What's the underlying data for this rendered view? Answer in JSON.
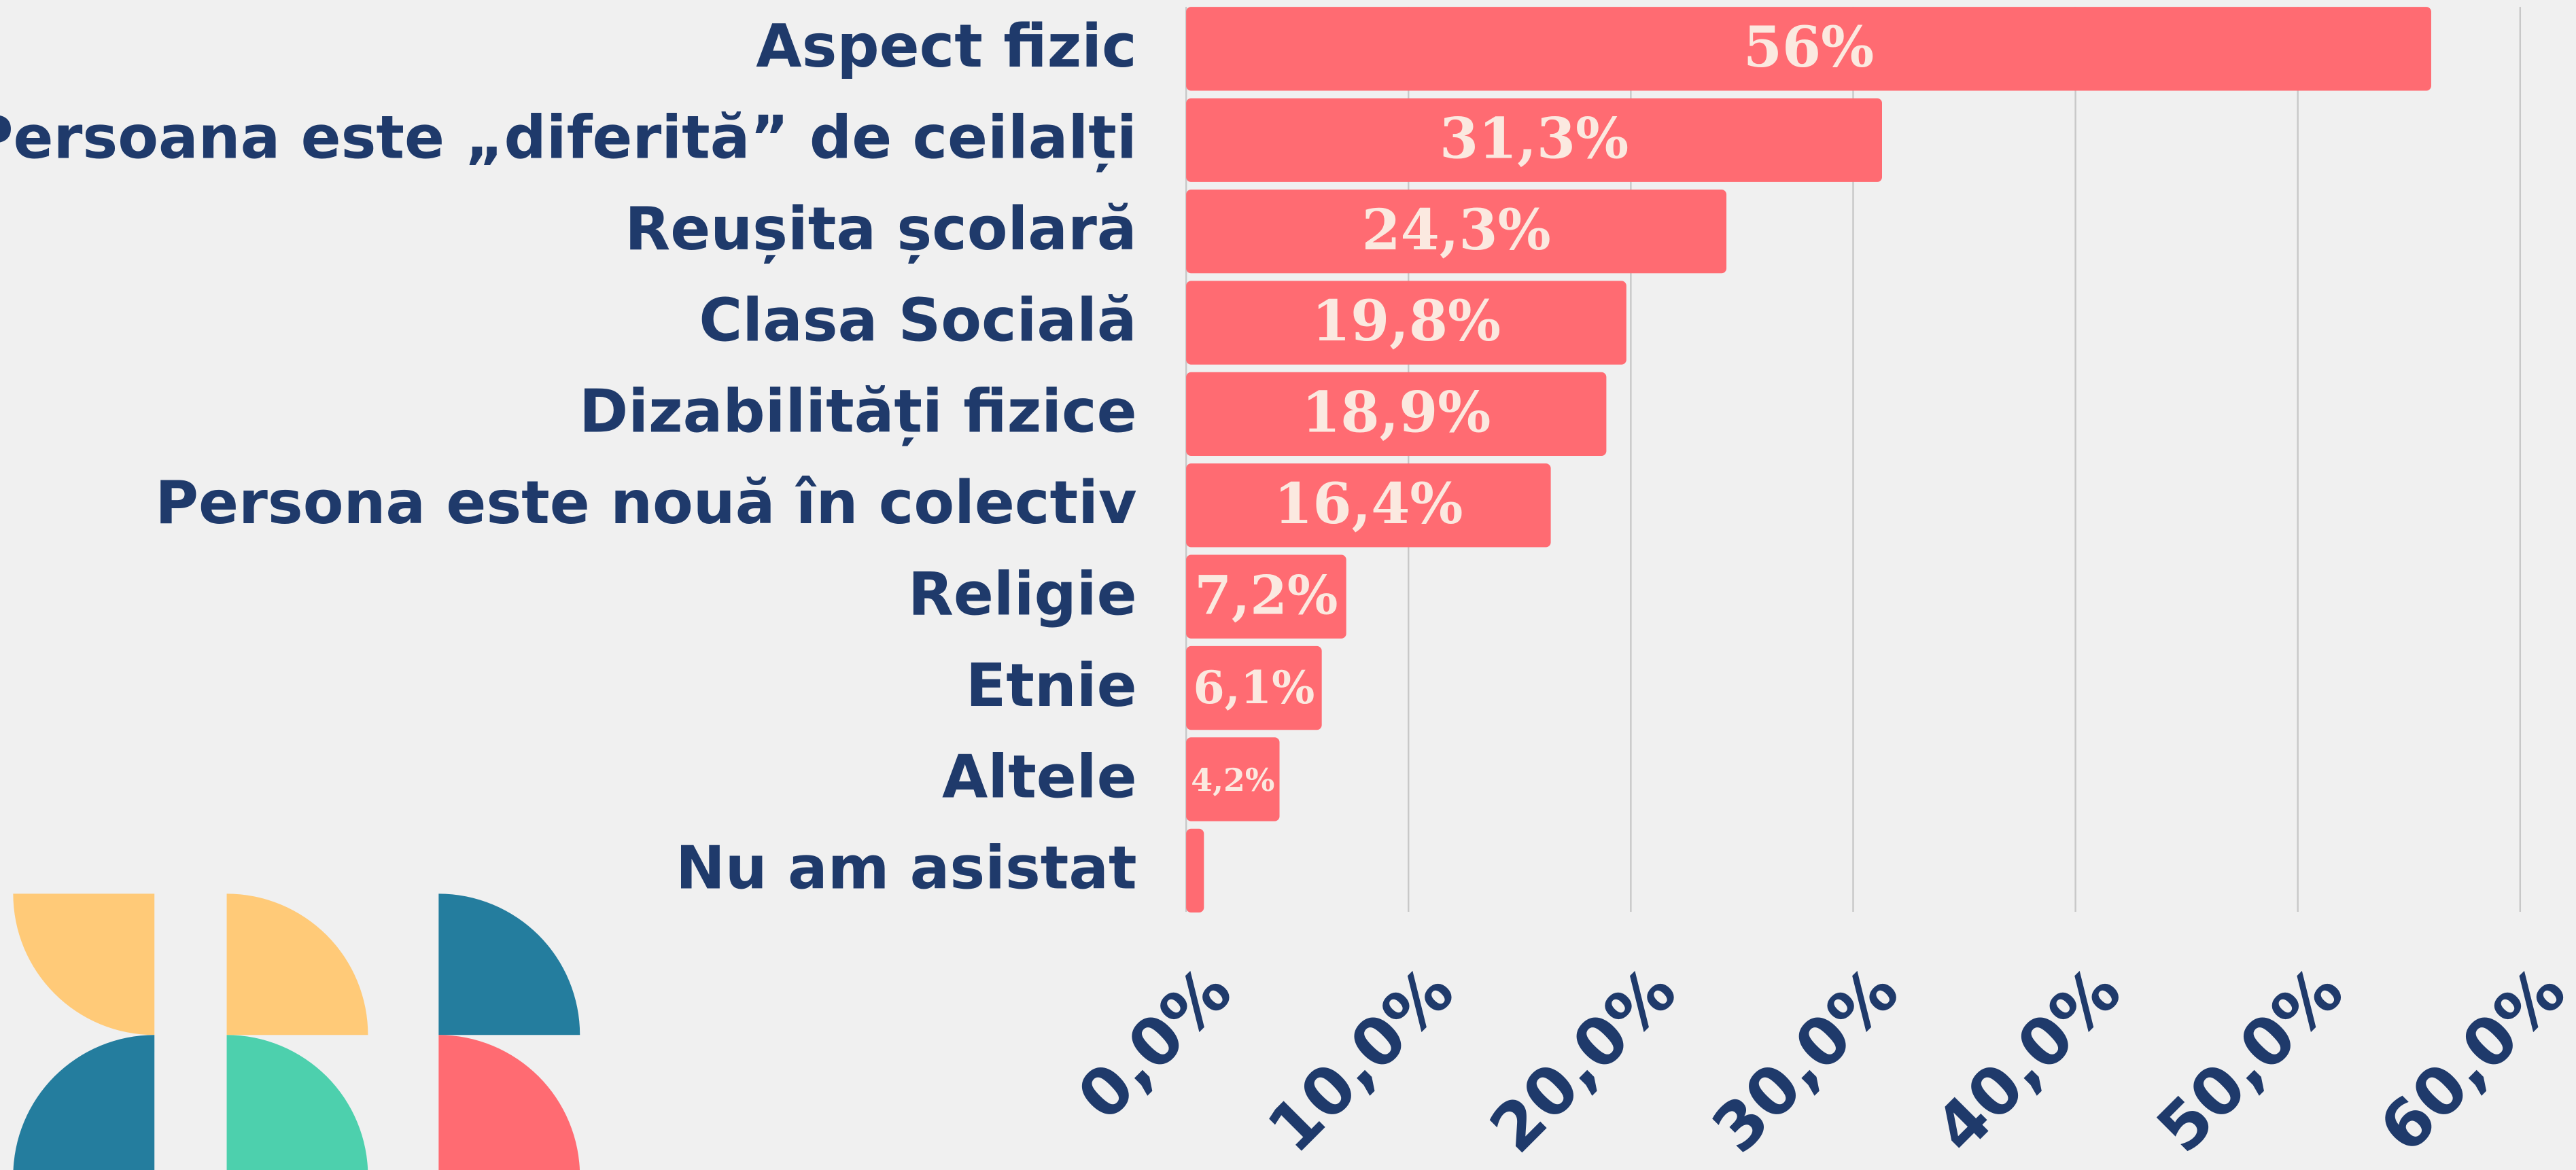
{
  "chart_data": {
    "type": "bar",
    "orientation": "horizontal",
    "categories": [
      "Aspect fizic",
      "Persoana este „diferită” de ceilalți",
      "Reușita școlară",
      "Clasa Socială",
      "Dizabilități fizice",
      "Persona este nouă în colectiv",
      "Religie",
      "Etnie",
      "Altele",
      "Nu am asistat"
    ],
    "values": [
      56,
      31.3,
      24.3,
      19.8,
      18.9,
      16.4,
      7.2,
      6.1,
      4.2,
      0.8
    ],
    "value_labels": [
      "56%",
      "31,3%",
      "24,3%",
      "19,8%",
      "18,9%",
      "16,4%",
      "7,2%",
      "6,1%",
      "4,2%",
      null
    ],
    "color": "#ff6b72",
    "xlim": [
      0,
      60
    ],
    "xticks": [
      {
        "value": 0,
        "label": "0,0%"
      },
      {
        "value": 10,
        "label": "10,0%"
      },
      {
        "value": 20,
        "label": "20,0%"
      },
      {
        "value": 30,
        "label": "30,0%"
      },
      {
        "value": 40,
        "label": "40,0%"
      },
      {
        "value": 50,
        "label": "50,0%"
      },
      {
        "value": 60,
        "label": "60,0%"
      }
    ],
    "grid": true
  }
}
